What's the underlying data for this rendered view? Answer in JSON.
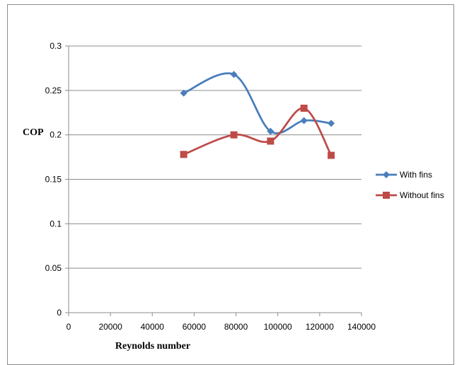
{
  "chart_data": {
    "type": "line",
    "title": "",
    "xlabel": "Reynolds number",
    "ylabel": "COP",
    "xlim": [
      0,
      140000
    ],
    "ylim": [
      0,
      0.3
    ],
    "x_ticks": [
      0,
      20000,
      40000,
      60000,
      80000,
      100000,
      120000,
      140000
    ],
    "y_ticks": [
      0,
      0.05,
      0.1,
      0.15,
      0.2,
      0.25,
      0.3
    ],
    "x_tick_labels": [
      "0",
      "20000",
      "40000",
      "60000",
      "80000",
      "100000",
      "120000",
      "140000"
    ],
    "y_tick_labels": [
      "0",
      "0.05",
      "0.1",
      "0.15",
      "0.2",
      "0.25",
      "0.3"
    ],
    "grid": "horizontal",
    "legend": "right",
    "series": [
      {
        "name": "With fins",
        "color": "#4a7ebb",
        "marker": "diamond",
        "x": [
          55000,
          79000,
          96500,
          112500,
          125500
        ],
        "y": [
          0.247,
          0.268,
          0.204,
          0.216,
          0.213
        ]
      },
      {
        "name": "Without fins",
        "color": "#be4b48",
        "marker": "square",
        "x": [
          55000,
          79000,
          96500,
          112500,
          125500
        ],
        "y": [
          0.178,
          0.2,
          0.193,
          0.23,
          0.177
        ]
      }
    ]
  }
}
